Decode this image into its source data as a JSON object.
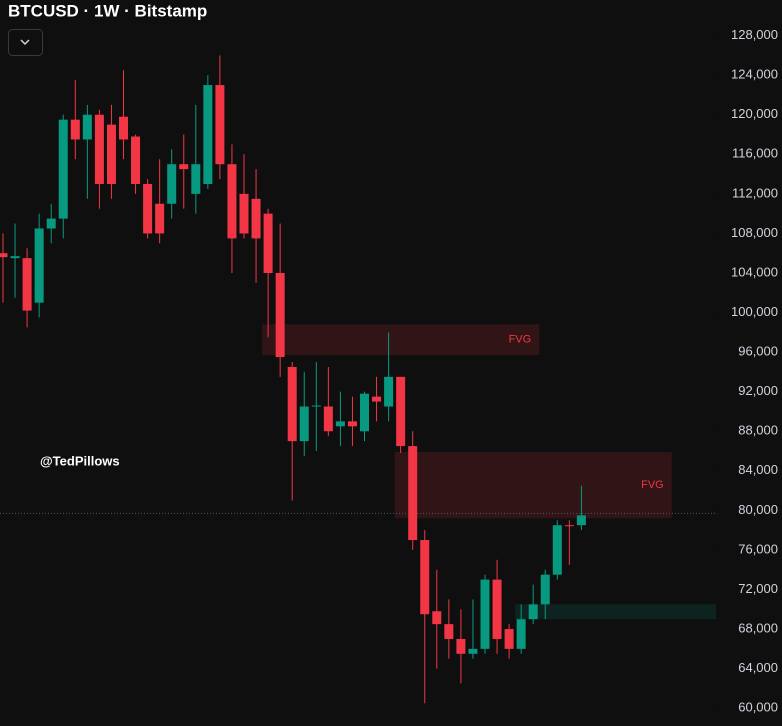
{
  "chart_data": {
    "type": "candlestick",
    "title": "BTCUSD · 1W · Bitstamp",
    "watermark": "@TedPillows",
    "up_color": "#089981",
    "down_color": "#f23645",
    "ylim": [
      58200,
      131600
    ],
    "yticks": [
      {
        "value": 60000,
        "label": "60,000"
      },
      {
        "value": 64000,
        "label": "64,000"
      },
      {
        "value": 68000,
        "label": "68,000"
      },
      {
        "value": 72000,
        "label": "72,000"
      },
      {
        "value": 76000,
        "label": "76,000"
      },
      {
        "value": 80000,
        "label": "80,000"
      },
      {
        "value": 84000,
        "label": "84,000"
      },
      {
        "value": 88000,
        "label": "88,000"
      },
      {
        "value": 92000,
        "label": "92,000"
      },
      {
        "value": 96000,
        "label": "96,000"
      },
      {
        "value": 100000,
        "label": "100,000"
      },
      {
        "value": 104000,
        "label": "104,000"
      },
      {
        "value": 108000,
        "label": "108,000"
      },
      {
        "value": 112000,
        "label": "112,000"
      },
      {
        "value": 116000,
        "label": "116,000"
      },
      {
        "value": 120000,
        "label": "120,000"
      },
      {
        "value": 124000,
        "label": "124,000"
      },
      {
        "value": 128000,
        "label": "128,000"
      }
    ],
    "candles": [
      {
        "o": 106000,
        "h": 108000,
        "l": 101000,
        "c": 105600
      },
      {
        "o": 105500,
        "h": 109000,
        "l": 101500,
        "c": 105700
      },
      {
        "o": 105500,
        "h": 106500,
        "l": 98500,
        "c": 100200
      },
      {
        "o": 101000,
        "h": 110000,
        "l": 99500,
        "c": 108500
      },
      {
        "o": 108500,
        "h": 111000,
        "l": 107000,
        "c": 109500
      },
      {
        "o": 109500,
        "h": 120000,
        "l": 107500,
        "c": 119500
      },
      {
        "o": 119500,
        "h": 123500,
        "l": 115500,
        "c": 117500
      },
      {
        "o": 117500,
        "h": 121000,
        "l": 111500,
        "c": 120000
      },
      {
        "o": 120000,
        "h": 120500,
        "l": 110500,
        "c": 113000
      },
      {
        "o": 119000,
        "h": 121000,
        "l": 111500,
        "c": 113000
      },
      {
        "o": 119800,
        "h": 124500,
        "l": 115500,
        "c": 117500
      },
      {
        "o": 117800,
        "h": 118000,
        "l": 112000,
        "c": 113000
      },
      {
        "o": 113000,
        "h": 113500,
        "l": 107500,
        "c": 108000
      },
      {
        "o": 111000,
        "h": 115500,
        "l": 107000,
        "c": 108000
      },
      {
        "o": 111000,
        "h": 116500,
        "l": 109500,
        "c": 115000
      },
      {
        "o": 115000,
        "h": 118000,
        "l": 110500,
        "c": 114500
      },
      {
        "o": 112000,
        "h": 121000,
        "l": 110000,
        "c": 115000
      },
      {
        "o": 113000,
        "h": 124000,
        "l": 112500,
        "c": 123000
      },
      {
        "o": 123000,
        "h": 126000,
        "l": 113500,
        "c": 115000
      },
      {
        "o": 115000,
        "h": 117000,
        "l": 104000,
        "c": 107500
      },
      {
        "o": 112000,
        "h": 116000,
        "l": 107500,
        "c": 108000
      },
      {
        "o": 111500,
        "h": 114500,
        "l": 103000,
        "c": 107500
      },
      {
        "o": 110000,
        "h": 110500,
        "l": 97500,
        "c": 104000
      },
      {
        "o": 104000,
        "h": 109000,
        "l": 93500,
        "c": 95500
      },
      {
        "o": 94500,
        "h": 95000,
        "l": 81000,
        "c": 87000
      },
      {
        "o": 87000,
        "h": 94000,
        "l": 85500,
        "c": 90500
      },
      {
        "o": 90500,
        "h": 95000,
        "l": 86000,
        "c": 90600
      },
      {
        "o": 90500,
        "h": 94500,
        "l": 87500,
        "c": 88000
      },
      {
        "o": 88500,
        "h": 92000,
        "l": 86500,
        "c": 89000
      },
      {
        "o": 89000,
        "h": 91500,
        "l": 86500,
        "c": 88500
      },
      {
        "o": 88000,
        "h": 92000,
        "l": 87000,
        "c": 91800
      },
      {
        "o": 91500,
        "h": 93500,
        "l": 89000,
        "c": 91000
      },
      {
        "o": 90500,
        "h": 98000,
        "l": 89000,
        "c": 93500
      },
      {
        "o": 93500,
        "h": 93500,
        "l": 85800,
        "c": 86500
      },
      {
        "o": 86500,
        "h": 88000,
        "l": 76000,
        "c": 77000
      },
      {
        "o": 77000,
        "h": 78000,
        "l": 60500,
        "c": 69500
      },
      {
        "o": 69800,
        "h": 74000,
        "l": 64000,
        "c": 68500
      },
      {
        "o": 68500,
        "h": 71000,
        "l": 65000,
        "c": 67000
      },
      {
        "o": 67000,
        "h": 70000,
        "l": 62500,
        "c": 65500
      },
      {
        "o": 65500,
        "h": 71000,
        "l": 65000,
        "c": 66000
      },
      {
        "o": 66000,
        "h": 73500,
        "l": 65500,
        "c": 73000
      },
      {
        "o": 73000,
        "h": 75000,
        "l": 65500,
        "c": 67000
      },
      {
        "o": 68000,
        "h": 68500,
        "l": 65000,
        "c": 66000
      },
      {
        "o": 66000,
        "h": 70500,
        "l": 65500,
        "c": 69000
      },
      {
        "o": 69000,
        "h": 72500,
        "l": 68500,
        "c": 70500
      },
      {
        "o": 70500,
        "h": 74000,
        "l": 69000,
        "c": 73500
      },
      {
        "o": 73500,
        "h": 79000,
        "l": 73000,
        "c": 78500
      },
      {
        "o": 78500,
        "h": 79000,
        "l": 74500,
        "c": 78400
      },
      {
        "o": 78500,
        "h": 82500,
        "l": 78000,
        "c": 79500
      }
    ],
    "zones": [
      {
        "label": "FVG",
        "top": 98800,
        "bottom": 95700,
        "start": 22,
        "end": 44,
        "color": "#f23645"
      },
      {
        "label": "FVG",
        "top": 85900,
        "bottom": 79200,
        "start": 33,
        "end": 55,
        "color": "#f23645"
      },
      {
        "top": 70500,
        "bottom": 69000,
        "start": 43,
        "end": 59,
        "color": "#089981"
      }
    ],
    "last_price": 79700
  }
}
